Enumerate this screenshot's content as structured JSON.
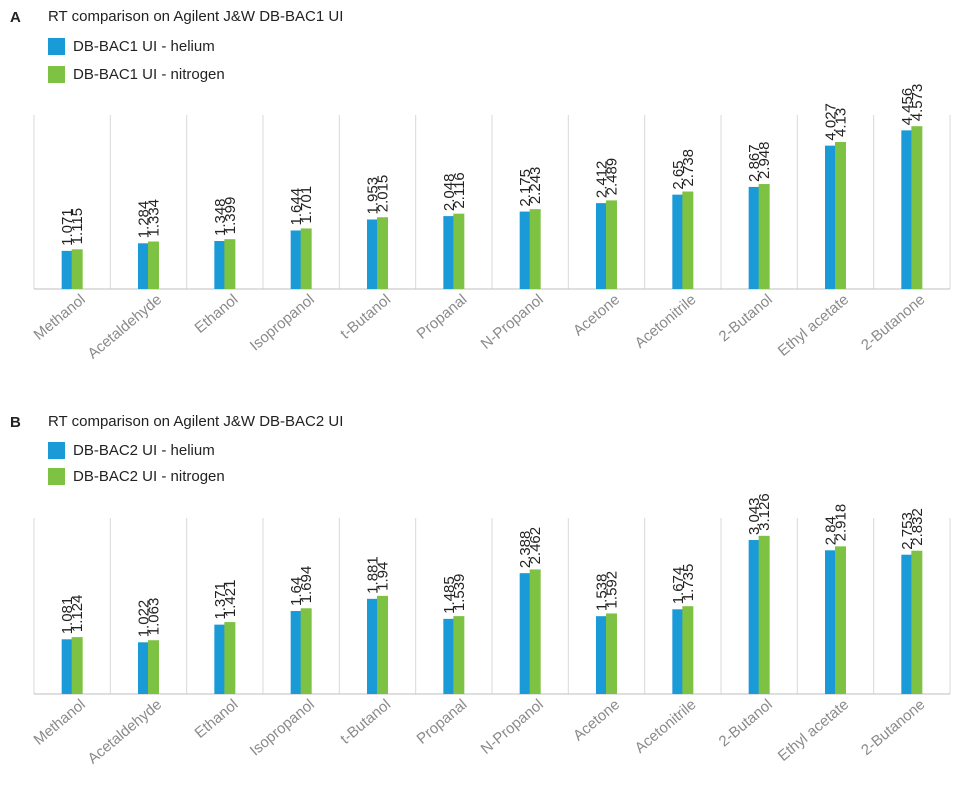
{
  "chart_data": [
    {
      "type": "bar",
      "panel_label": "A",
      "title": "RT comparison on Agilent J&W DB-BAC1 UI",
      "categories": [
        "Methanol",
        "Acetaldehyde",
        "Ethanol",
        "Isopropanol",
        "t-Butanol",
        "Propanal",
        "N-Propanol",
        "Acetone",
        "Acetonitrile",
        "2-Butanol",
        "Ethyl acetate",
        "2-Butanone"
      ],
      "series": [
        {
          "name": "DB-BAC1 UI - helium",
          "color": "#1b9ad8",
          "values": [
            1.071,
            1.284,
            1.348,
            1.644,
            1.953,
            2.048,
            2.175,
            2.412,
            2.65,
            2.867,
            4.027,
            4.456
          ]
        },
        {
          "name": "DB-BAC1 UI - nitrogen",
          "color": "#7dc242",
          "values": [
            1.115,
            1.334,
            1.399,
            1.701,
            2.015,
            2.116,
            2.243,
            2.489,
            2.738,
            2.948,
            4.13,
            4.573
          ]
        }
      ],
      "ylim": [
        0,
        5.5
      ],
      "legend": "top-left",
      "grid": "vertical category separators"
    },
    {
      "type": "bar",
      "panel_label": "B",
      "title": "RT comparison on Agilent J&W DB-BAC2 UI",
      "categories": [
        "Methanol",
        "Acetaldehyde",
        "Ethanol",
        "Isopropanol",
        "t-Butanol",
        "Propanal",
        "N-Propanol",
        "Acetone",
        "Acetonitrile",
        "2-Butanol",
        "Ethyl acetate",
        "2-Butanone"
      ],
      "series": [
        {
          "name": "DB-BAC2 UI - helium",
          "color": "#1b9ad8",
          "values": [
            1.081,
            1.022,
            1.371,
            1.64,
            1.881,
            1.485,
            2.388,
            1.538,
            1.674,
            3.043,
            2.84,
            2.753
          ]
        },
        {
          "name": "DB-BAC2 UI - nitrogen",
          "color": "#7dc242",
          "values": [
            1.124,
            1.063,
            1.421,
            1.694,
            1.94,
            1.539,
            2.462,
            1.592,
            1.735,
            3.126,
            2.918,
            2.832
          ]
        }
      ],
      "ylim": [
        0,
        3.8
      ],
      "legend": "top-left",
      "grid": "vertical category separators"
    }
  ]
}
